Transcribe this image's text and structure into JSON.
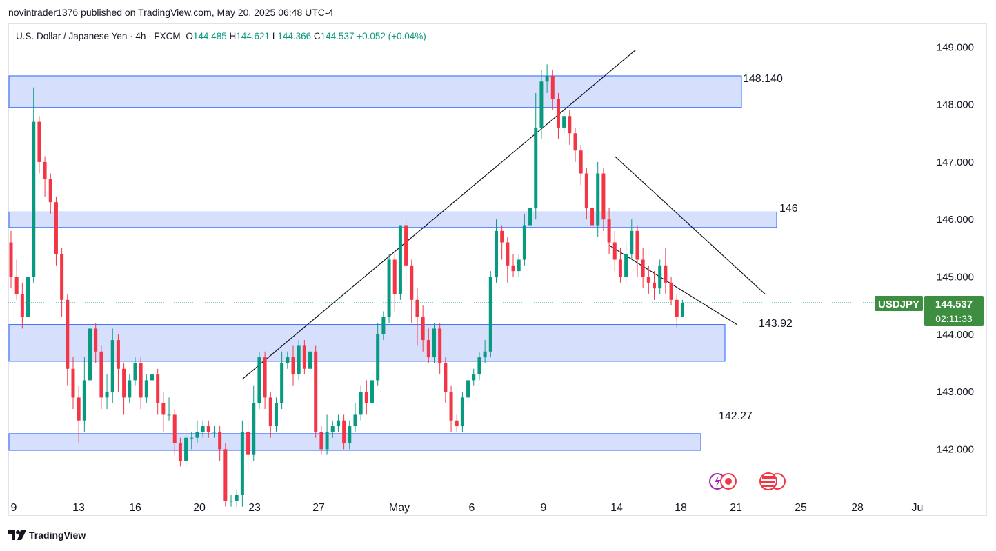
{
  "publish_line": "novintrader1376 published on TradingView.com, May 20, 2025 06:48 UTC-4",
  "legend": {
    "symbol": "U.S. Dollar / Japanese Yen · 4h · FXCM",
    "o_label": "O",
    "o_value": "144.485",
    "h_label": "H",
    "h_value": "144.621",
    "l_label": "L",
    "l_value": "144.366",
    "c_label": "C",
    "c_value": "144.537",
    "change": "+0.052 (+0.04%)"
  },
  "footer": {
    "brand": "TradingView"
  },
  "colors": {
    "up": "#089981",
    "down": "#f23645",
    "zone_fill": "#d6e0fd",
    "zone_stroke": "#2962ff",
    "badge": "#3e8e41"
  },
  "chart_data": {
    "type": "candlestick",
    "timeframe": "4h",
    "ylim": [
      141.2,
      149.4
    ],
    "yticks": [
      "142.000",
      "143.000",
      "144.000",
      "145.000",
      "146.000",
      "147.000",
      "148.000",
      "149.000"
    ],
    "xticks": [
      "9",
      "13",
      "16",
      "20",
      "23",
      "27",
      "May",
      "6",
      "9",
      "14",
      "18",
      "21",
      "25",
      "28",
      "Ju"
    ],
    "current_price": {
      "symbol": "USDJPY",
      "price": "144.537",
      "countdown": "02:11:33"
    },
    "zones": [
      {
        "label": "148.140",
        "top": 148.5,
        "bottom": 147.95,
        "from_index": 0,
        "to_index": 129
      },
      {
        "label": "146",
        "top": 146.13,
        "bottom": 145.86,
        "from_index": 72,
        "to_index": 135
      },
      {
        "label": "143.92",
        "top": 144.17,
        "bottom": 143.53,
        "from_index": 0,
        "to_index": 125
      },
      {
        "label": "142.27",
        "top": 142.27,
        "bottom": 141.98,
        "from_index": 23,
        "to_index": 122
      }
    ],
    "trendlines": [
      {
        "from": [
          41,
          143.22
        ],
        "to": [
          107,
          148.9
        ]
      },
      {
        "from": [
          107,
          147.1
        ],
        "to": [
          130,
          144.65
        ]
      },
      {
        "from": [
          106,
          145.55
        ],
        "to": [
          125,
          144.12
        ]
      }
    ],
    "candles": [
      [
        145.6,
        145.0,
        145.8,
        144.8
      ],
      [
        145.0,
        144.7,
        145.3,
        144.6
      ],
      [
        144.7,
        144.3,
        144.9,
        144.1
      ],
      [
        144.3,
        145.0,
        145.1,
        144.2
      ],
      [
        145.0,
        147.7,
        148.3,
        144.9
      ],
      [
        147.7,
        147.0,
        147.8,
        146.8
      ],
      [
        147.0,
        146.7,
        147.1,
        146.4
      ],
      [
        146.7,
        146.3,
        146.8,
        146.1
      ],
      [
        146.3,
        145.4,
        146.4,
        145.2
      ],
      [
        145.4,
        144.6,
        145.5,
        144.3
      ],
      [
        144.6,
        143.4,
        144.7,
        143.1
      ],
      [
        143.4,
        142.9,
        143.6,
        142.7
      ],
      [
        142.9,
        142.5,
        143.1,
        142.1
      ],
      [
        142.5,
        143.2,
        143.6,
        142.3
      ],
      [
        143.2,
        144.1,
        144.2,
        143.0
      ],
      [
        144.1,
        143.7,
        144.2,
        143.5
      ],
      [
        143.7,
        142.9,
        143.8,
        142.7
      ],
      [
        142.9,
        143.0,
        143.3,
        142.7
      ],
      [
        143.0,
        143.9,
        144.1,
        142.8
      ],
      [
        143.9,
        143.4,
        144.0,
        143.0
      ],
      [
        143.4,
        142.9,
        143.5,
        142.6
      ],
      [
        142.9,
        143.2,
        143.3,
        142.8
      ],
      [
        143.2,
        143.5,
        143.6,
        143.1
      ],
      [
        143.5,
        142.9,
        143.6,
        142.7
      ],
      [
        142.9,
        143.2,
        143.3,
        142.8
      ],
      [
        143.2,
        143.3,
        143.4,
        143.0
      ],
      [
        143.3,
        142.8,
        143.4,
        142.6
      ],
      [
        142.8,
        142.6,
        143.0,
        142.3
      ],
      [
        142.6,
        142.6,
        142.9,
        142.5
      ],
      [
        142.6,
        142.1,
        142.7,
        141.9
      ],
      [
        142.1,
        141.8,
        142.2,
        141.7
      ],
      [
        141.8,
        142.2,
        142.4,
        141.7
      ],
      [
        142.2,
        142.2,
        142.3,
        142.0
      ],
      [
        142.2,
        142.3,
        142.5,
        142.1
      ],
      [
        142.3,
        142.4,
        142.5,
        142.2
      ],
      [
        142.4,
        142.3,
        142.5,
        142.2
      ],
      [
        142.3,
        142.3,
        142.4,
        142.2
      ],
      [
        142.3,
        142.0,
        142.4,
        141.8
      ],
      [
        142.0,
        141.1,
        142.1,
        141.0
      ],
      [
        141.1,
        141.1,
        141.2,
        141.0
      ],
      [
        141.1,
        141.2,
        141.3,
        141.0
      ],
      [
        141.2,
        142.3,
        142.5,
        141.0
      ],
      [
        142.3,
        141.9,
        142.5,
        141.6
      ],
      [
        141.9,
        142.8,
        143.1,
        141.8
      ],
      [
        142.8,
        143.6,
        143.7,
        142.7
      ],
      [
        143.6,
        142.9,
        143.7,
        142.7
      ],
      [
        142.9,
        142.4,
        143.0,
        142.2
      ],
      [
        142.4,
        142.8,
        142.9,
        142.3
      ],
      [
        142.8,
        143.5,
        143.7,
        142.7
      ],
      [
        143.5,
        143.6,
        143.7,
        143.4
      ],
      [
        143.6,
        143.3,
        143.8,
        143.1
      ],
      [
        143.3,
        143.8,
        143.9,
        143.2
      ],
      [
        143.8,
        143.4,
        143.9,
        143.3
      ],
      [
        143.4,
        143.7,
        143.8,
        143.2
      ],
      [
        143.7,
        142.3,
        143.8,
        142.2
      ],
      [
        142.3,
        142.0,
        142.4,
        141.9
      ],
      [
        142.0,
        142.3,
        142.6,
        141.9
      ],
      [
        142.3,
        142.4,
        142.5,
        142.2
      ],
      [
        142.4,
        142.5,
        142.6,
        142.3
      ],
      [
        142.5,
        142.1,
        142.6,
        142.0
      ],
      [
        142.1,
        142.4,
        142.5,
        142.0
      ],
      [
        142.4,
        142.6,
        142.8,
        142.3
      ],
      [
        142.6,
        143.0,
        143.1,
        142.5
      ],
      [
        143.0,
        142.8,
        143.2,
        142.6
      ],
      [
        142.8,
        143.2,
        143.3,
        142.7
      ],
      [
        143.2,
        144.0,
        144.2,
        143.1
      ],
      [
        144.0,
        144.3,
        144.4,
        143.9
      ],
      [
        144.3,
        145.3,
        145.4,
        144.2
      ],
      [
        145.3,
        144.7,
        145.4,
        144.4
      ],
      [
        144.7,
        145.9,
        145.9,
        144.6
      ],
      [
        145.9,
        145.2,
        146.0,
        144.9
      ],
      [
        145.2,
        144.6,
        145.3,
        144.2
      ],
      [
        144.6,
        144.3,
        144.8,
        143.8
      ],
      [
        144.3,
        143.9,
        144.5,
        143.7
      ],
      [
        143.9,
        143.6,
        144.1,
        143.5
      ],
      [
        143.6,
        144.1,
        144.2,
        143.5
      ],
      [
        144.1,
        143.5,
        144.2,
        143.3
      ],
      [
        143.5,
        143.0,
        143.6,
        142.8
      ],
      [
        143.0,
        142.5,
        143.1,
        142.3
      ],
      [
        142.5,
        142.4,
        142.6,
        142.3
      ],
      [
        142.4,
        142.9,
        143.0,
        142.3
      ],
      [
        142.9,
        143.2,
        143.3,
        142.8
      ],
      [
        143.2,
        143.3,
        143.4,
        143.1
      ],
      [
        143.3,
        143.6,
        143.7,
        143.2
      ],
      [
        143.6,
        143.7,
        143.9,
        143.5
      ],
      [
        143.7,
        145.0,
        145.1,
        143.6
      ],
      [
        145.0,
        145.8,
        146.0,
        144.9
      ],
      [
        145.8,
        145.6,
        145.9,
        145.3
      ],
      [
        145.6,
        145.2,
        145.7,
        144.9
      ],
      [
        145.2,
        145.1,
        145.4,
        145.0
      ],
      [
        145.1,
        145.3,
        145.4,
        145.0
      ],
      [
        145.3,
        145.9,
        146.1,
        145.2
      ],
      [
        145.9,
        146.2,
        146.2,
        145.8
      ],
      [
        146.2,
        147.6,
        148.2,
        146.0
      ],
      [
        147.6,
        148.4,
        148.6,
        147.4
      ],
      [
        148.4,
        148.5,
        148.7,
        148.2
      ],
      [
        148.5,
        148.1,
        148.6,
        147.9
      ],
      [
        148.1,
        147.6,
        148.2,
        147.4
      ],
      [
        147.6,
        147.8,
        148.0,
        147.5
      ],
      [
        147.8,
        147.5,
        147.9,
        147.3
      ],
      [
        147.5,
        147.2,
        147.6,
        147.0
      ],
      [
        147.2,
        146.8,
        147.3,
        146.6
      ],
      [
        146.8,
        146.2,
        146.9,
        146.0
      ],
      [
        146.2,
        145.9,
        146.4,
        145.8
      ],
      [
        145.9,
        146.8,
        147.0,
        145.7
      ],
      [
        146.8,
        146.0,
        146.9,
        145.8
      ],
      [
        146.0,
        145.6,
        146.2,
        145.4
      ],
      [
        145.6,
        145.3,
        145.8,
        145.1
      ],
      [
        145.3,
        145.0,
        145.5,
        144.9
      ],
      [
        145.0,
        145.4,
        145.6,
        144.9
      ],
      [
        145.4,
        145.8,
        146.0,
        145.3
      ],
      [
        145.8,
        145.3,
        145.9,
        145.0
      ],
      [
        145.3,
        145.0,
        145.5,
        144.8
      ],
      [
        145.0,
        144.9,
        145.2,
        144.7
      ],
      [
        144.9,
        144.8,
        145.1,
        144.6
      ],
      [
        144.8,
        145.2,
        145.3,
        144.7
      ],
      [
        145.2,
        144.9,
        145.5,
        144.7
      ],
      [
        144.9,
        144.6,
        145.0,
        144.5
      ],
      [
        144.6,
        144.3,
        144.7,
        144.1
      ],
      [
        144.3,
        144.55,
        144.6,
        144.3
      ]
    ]
  }
}
